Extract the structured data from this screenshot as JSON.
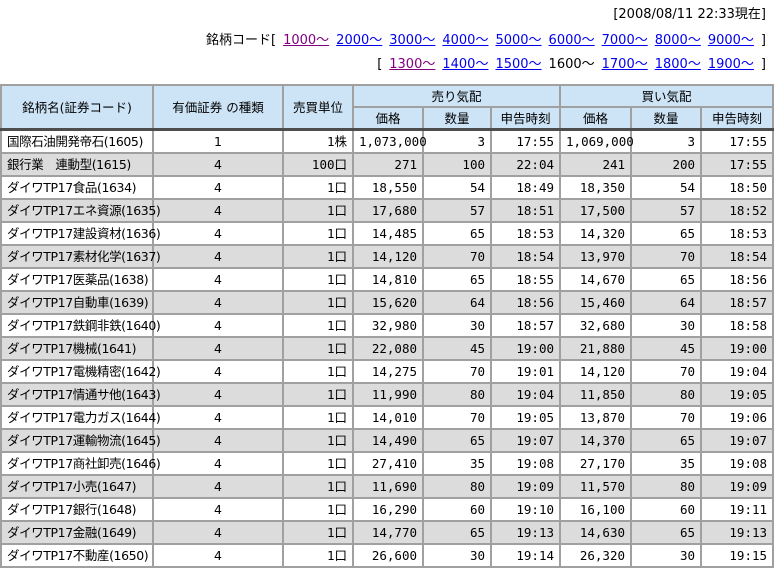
{
  "colors": {
    "header_bg": "#cde3f6",
    "alt_row_bg": "#dcdcdc",
    "grid": "#a0a0a0",
    "header_separator": "#4d4d4d",
    "link": "#0000ee",
    "visited_link": "#800080",
    "text": "#000000"
  },
  "top": {
    "timestamp": "[2008/08/11 22:33現在]",
    "nav_label": "銘柄コード[",
    "row1_links": [
      {
        "label": "1000〜",
        "state": "visited"
      },
      {
        "label": "2000〜",
        "state": "link"
      },
      {
        "label": "3000〜",
        "state": "link"
      },
      {
        "label": "4000〜",
        "state": "link"
      },
      {
        "label": "5000〜",
        "state": "link"
      },
      {
        "label": "6000〜",
        "state": "link"
      },
      {
        "label": "7000〜",
        "state": "link"
      },
      {
        "label": "8000〜",
        "state": "link"
      },
      {
        "label": "9000〜",
        "state": "link"
      }
    ],
    "row1_close": "]",
    "row2_open": "[",
    "row2_links": [
      {
        "label": "1300〜",
        "state": "visited"
      },
      {
        "label": "1400〜",
        "state": "link"
      },
      {
        "label": "1500〜",
        "state": "link"
      },
      {
        "label": "1600〜",
        "state": "current"
      },
      {
        "label": "1700〜",
        "state": "link"
      },
      {
        "label": "1800〜",
        "state": "link"
      },
      {
        "label": "1900〜",
        "state": "link"
      }
    ],
    "row2_close": "]"
  },
  "table": {
    "headers": {
      "name": "銘柄名(証券コード)",
      "type": "有価証券\nの種類",
      "unit": "売買単位",
      "sell_group": "売り気配",
      "buy_group": "買い気配",
      "price": "価格",
      "qty": "数量",
      "time": "申告時刻"
    },
    "rows": [
      {
        "name": "国際石油開発帝石(1605)",
        "type": "1",
        "unit": "1株",
        "sp": "1,073,000",
        "sq": "3",
        "st": "17:55",
        "bp": "1,069,000",
        "bq": "3",
        "bt": "17:55"
      },
      {
        "name": "銀行業　連動型(1615)",
        "type": "4",
        "unit": "100口",
        "sp": "271",
        "sq": "100",
        "st": "22:04",
        "bp": "241",
        "bq": "200",
        "bt": "17:55"
      },
      {
        "name": "ダイワTP17食品(1634)",
        "type": "4",
        "unit": "1口",
        "sp": "18,550",
        "sq": "54",
        "st": "18:49",
        "bp": "18,350",
        "bq": "54",
        "bt": "18:50"
      },
      {
        "name": "ダイワTP17エネ資源(1635)",
        "type": "4",
        "unit": "1口",
        "sp": "17,680",
        "sq": "57",
        "st": "18:51",
        "bp": "17,500",
        "bq": "57",
        "bt": "18:52"
      },
      {
        "name": "ダイワTP17建設資材(1636)",
        "type": "4",
        "unit": "1口",
        "sp": "14,485",
        "sq": "65",
        "st": "18:53",
        "bp": "14,320",
        "bq": "65",
        "bt": "18:53"
      },
      {
        "name": "ダイワTP17素材化学(1637)",
        "type": "4",
        "unit": "1口",
        "sp": "14,120",
        "sq": "70",
        "st": "18:54",
        "bp": "13,970",
        "bq": "70",
        "bt": "18:54"
      },
      {
        "name": "ダイワTP17医薬品(1638)",
        "type": "4",
        "unit": "1口",
        "sp": "14,810",
        "sq": "65",
        "st": "18:55",
        "bp": "14,670",
        "bq": "65",
        "bt": "18:56"
      },
      {
        "name": "ダイワTP17自動車(1639)",
        "type": "4",
        "unit": "1口",
        "sp": "15,620",
        "sq": "64",
        "st": "18:56",
        "bp": "15,460",
        "bq": "64",
        "bt": "18:57"
      },
      {
        "name": "ダイワTP17鉄鋼非鉄(1640)",
        "type": "4",
        "unit": "1口",
        "sp": "32,980",
        "sq": "30",
        "st": "18:57",
        "bp": "32,680",
        "bq": "30",
        "bt": "18:58"
      },
      {
        "name": "ダイワTP17機械(1641)",
        "type": "4",
        "unit": "1口",
        "sp": "22,080",
        "sq": "45",
        "st": "19:00",
        "bp": "21,880",
        "bq": "45",
        "bt": "19:00"
      },
      {
        "name": "ダイワTP17電機精密(1642)",
        "type": "4",
        "unit": "1口",
        "sp": "14,275",
        "sq": "70",
        "st": "19:01",
        "bp": "14,120",
        "bq": "70",
        "bt": "19:04"
      },
      {
        "name": "ダイワTP17情通サ他(1643)",
        "type": "4",
        "unit": "1口",
        "sp": "11,990",
        "sq": "80",
        "st": "19:04",
        "bp": "11,850",
        "bq": "80",
        "bt": "19:05"
      },
      {
        "name": "ダイワTP17電力ガス(1644)",
        "type": "4",
        "unit": "1口",
        "sp": "14,010",
        "sq": "70",
        "st": "19:05",
        "bp": "13,870",
        "bq": "70",
        "bt": "19:06"
      },
      {
        "name": "ダイワTP17運輸物流(1645)",
        "type": "4",
        "unit": "1口",
        "sp": "14,490",
        "sq": "65",
        "st": "19:07",
        "bp": "14,370",
        "bq": "65",
        "bt": "19:07"
      },
      {
        "name": "ダイワTP17商社卸売(1646)",
        "type": "4",
        "unit": "1口",
        "sp": "27,410",
        "sq": "35",
        "st": "19:08",
        "bp": "27,170",
        "bq": "35",
        "bt": "19:08"
      },
      {
        "name": "ダイワTP17小売(1647)",
        "type": "4",
        "unit": "1口",
        "sp": "11,690",
        "sq": "80",
        "st": "19:09",
        "bp": "11,570",
        "bq": "80",
        "bt": "19:09"
      },
      {
        "name": "ダイワTP17銀行(1648)",
        "type": "4",
        "unit": "1口",
        "sp": "16,290",
        "sq": "60",
        "st": "19:10",
        "bp": "16,100",
        "bq": "60",
        "bt": "19:11"
      },
      {
        "name": "ダイワTP17金融(1649)",
        "type": "4",
        "unit": "1口",
        "sp": "14,770",
        "sq": "65",
        "st": "19:13",
        "bp": "14,630",
        "bq": "65",
        "bt": "19:13"
      },
      {
        "name": "ダイワTP17不動産(1650)",
        "type": "4",
        "unit": "1口",
        "sp": "26,600",
        "sq": "30",
        "st": "19:14",
        "bp": "26,320",
        "bq": "30",
        "bt": "19:15"
      }
    ]
  }
}
